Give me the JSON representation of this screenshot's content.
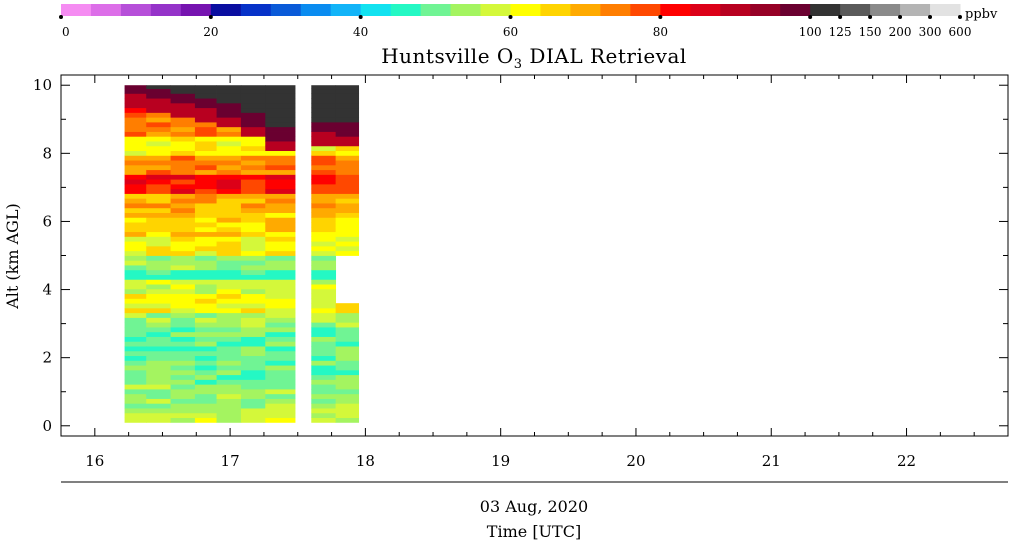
{
  "chart_data": {
    "type": "heatmap",
    "title_prefix": "Huntsville O",
    "title_sub": "3",
    "title_suffix": " DIAL Retrieval",
    "ylabel": "Alt (km AGL)",
    "date_label": "03 Aug, 2020",
    "xlabel": "Time [UTC]",
    "xlim": [
      15.75,
      22.75
    ],
    "ylim": [
      -0.3,
      10.3
    ],
    "x_ticks": [
      16,
      17,
      18,
      19,
      20,
      21,
      22
    ],
    "y_ticks": [
      0,
      2,
      4,
      6,
      8,
      10
    ],
    "colorbar": {
      "unit": "ppbv",
      "tick_labels": [
        {
          "label": "0",
          "index": 0
        },
        {
          "label": "20",
          "index": 5
        },
        {
          "label": "40",
          "index": 10
        },
        {
          "label": "60",
          "index": 15
        },
        {
          "label": "80",
          "index": 20
        },
        {
          "label": "100",
          "index": 25
        },
        {
          "label": "125",
          "index": 26
        },
        {
          "label": "150",
          "index": 27
        },
        {
          "label": "200",
          "index": 28
        },
        {
          "label": "300",
          "index": 29
        },
        {
          "label": "600",
          "index": 30
        }
      ],
      "colors": [
        "#f58cf2",
        "#dc6ee8",
        "#b64fd9",
        "#9533c9",
        "#7614b0",
        "#0a0ea0",
        "#0632c8",
        "#0a5ad8",
        "#0a8cf0",
        "#12b4f8",
        "#12e2f0",
        "#24f8c4",
        "#70f494",
        "#a4f460",
        "#d4f83a",
        "#ffff00",
        "#ffd400",
        "#ffaa00",
        "#ff7e00",
        "#ff4800",
        "#ff0000",
        "#dc0018",
        "#b80020",
        "#960026",
        "#6a0030",
        "#333333",
        "#5a5a5a",
        "#8a8a8a",
        "#b4b4b4",
        "#e2e2e2"
      ]
    },
    "segments": [
      {
        "x0": 16.22,
        "x1": 17.48,
        "ybot": 0.1,
        "ytop": 10.0,
        "columns": [
          {
            "x0": 16.22,
            "x1": 16.38,
            "ztop": 10.0
          },
          {
            "x0": 16.38,
            "x1": 16.56,
            "ztop": 9.85
          },
          {
            "x0": 16.56,
            "x1": 16.74,
            "ztop": 9.7
          },
          {
            "x0": 16.74,
            "x1": 16.9,
            "ztop": 9.6
          },
          {
            "x0": 16.9,
            "x1": 17.08,
            "ztop": 9.4
          },
          {
            "x0": 17.08,
            "x1": 17.26,
            "ztop": 9.1
          },
          {
            "x0": 17.26,
            "x1": 17.48,
            "ztop": 8.7
          }
        ]
      },
      {
        "x0": 17.6,
        "x1": 17.95,
        "ybot": 0.1,
        "ytop": 10.0,
        "gap": {
          "x0": 17.78,
          "x1": 17.95,
          "ybot": 3.6,
          "ytop": 5.1
        },
        "columns": [
          {
            "x0": 17.6,
            "x1": 17.78,
            "ztop": 8.9
          },
          {
            "x0": 17.78,
            "x1": 17.95,
            "ztop": 8.8
          }
        ]
      }
    ],
    "profile": [
      {
        "z0": 0.1,
        "z1": 0.5,
        "idx": 14
      },
      {
        "z0": 0.5,
        "z1": 1.2,
        "idx": 13
      },
      {
        "z0": 1.2,
        "z1": 2.0,
        "idx": 12
      },
      {
        "z0": 2.0,
        "z1": 2.8,
        "idx": 12
      },
      {
        "z0": 2.8,
        "z1": 3.3,
        "idx": 13
      },
      {
        "z0": 3.3,
        "z1": 3.8,
        "idx": 15
      },
      {
        "z0": 3.8,
        "z1": 4.2,
        "idx": 14
      },
      {
        "z0": 4.2,
        "z1": 4.5,
        "idx": 11
      },
      {
        "z0": 4.5,
        "z1": 5.0,
        "idx": 13
      },
      {
        "z0": 5.0,
        "z1": 5.5,
        "idx": 15
      },
      {
        "z0": 5.5,
        "z1": 6.2,
        "idx": 16
      },
      {
        "z0": 6.2,
        "z1": 6.7,
        "idx": 17
      },
      {
        "z0": 6.7,
        "z1": 7.3,
        "idx": 20
      },
      {
        "z0": 7.3,
        "z1": 7.8,
        "idx": 18
      },
      {
        "z0": 7.8,
        "z1": 8.4,
        "idx": 15
      },
      {
        "z0": 8.4,
        "z1": 9.0,
        "idx": 18
      },
      {
        "z0": 9.0,
        "z1": 9.5,
        "idx": 19
      },
      {
        "z0": 9.5,
        "z1": 10.0,
        "idx": 20
      }
    ]
  }
}
